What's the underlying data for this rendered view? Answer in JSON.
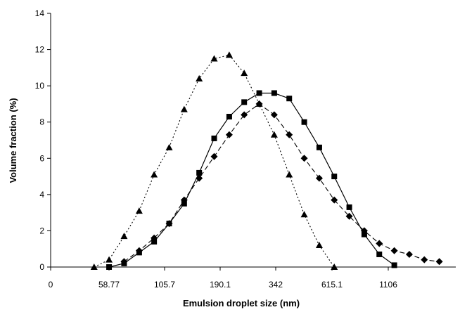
{
  "chart_data": {
    "type": "line",
    "xlabel": "Emulsion droplet size (nm)",
    "ylabel": "Volume fraction (%)",
    "ylim": [
      0,
      14
    ],
    "y_ticks": [
      "0",
      "2",
      "4",
      "6",
      "8",
      "10",
      "12",
      "14"
    ],
    "x_tick_labels": [
      "0",
      "58.77",
      "105.7",
      "190.1",
      "342",
      "615.1",
      "1106"
    ],
    "x_scale": "log",
    "grid": false,
    "legend": "none",
    "series": [
      {
        "marker": "triangle",
        "line_style": "dash-dot",
        "color": "#000000",
        "x": [
          50.2,
          58.8,
          68.9,
          80.8,
          94.6,
          110.9,
          129.9,
          152.2,
          178.3,
          209,
          244.8,
          286.9,
          336.1,
          393.8,
          461.4,
          540.7,
          633.4
        ],
        "y": [
          0.0,
          0.4,
          1.7,
          3.1,
          5.1,
          6.6,
          8.7,
          10.4,
          11.5,
          11.7,
          10.7,
          9.0,
          7.3,
          5.1,
          2.9,
          1.2,
          0.0
        ]
      },
      {
        "marker": "square",
        "line_style": "solid",
        "color": "#000000",
        "x": [
          58.8,
          68.9,
          80.8,
          94.6,
          110.9,
          129.9,
          152.2,
          178.3,
          209,
          244.8,
          286.9,
          336.1,
          393.8,
          461.4,
          540.7,
          633.4,
          742.1,
          869.5,
          1018.7,
          1193.6
        ],
        "y": [
          0.0,
          0.2,
          0.8,
          1.4,
          2.4,
          3.5,
          5.2,
          7.1,
          8.3,
          9.1,
          9.6,
          9.6,
          9.3,
          8.0,
          6.6,
          5.0,
          3.3,
          1.8,
          0.7,
          0.1
        ]
      },
      {
        "marker": "diamond",
        "line_style": "dashed",
        "color": "#000000",
        "x": [
          68.9,
          80.8,
          94.6,
          110.9,
          129.9,
          152.2,
          178.3,
          209,
          244.8,
          286.9,
          336.1,
          393.8,
          461.4,
          540.7,
          633.4,
          742.1,
          869.5,
          1018.7,
          1193.6,
          1398.5,
          1638.5,
          1919.7
        ],
        "y": [
          0.3,
          0.9,
          1.6,
          2.4,
          3.7,
          4.9,
          6.1,
          7.3,
          8.4,
          9.0,
          8.4,
          7.3,
          6.0,
          4.9,
          3.7,
          2.8,
          2.0,
          1.3,
          0.9,
          0.7,
          0.4,
          0.3
        ]
      }
    ]
  }
}
